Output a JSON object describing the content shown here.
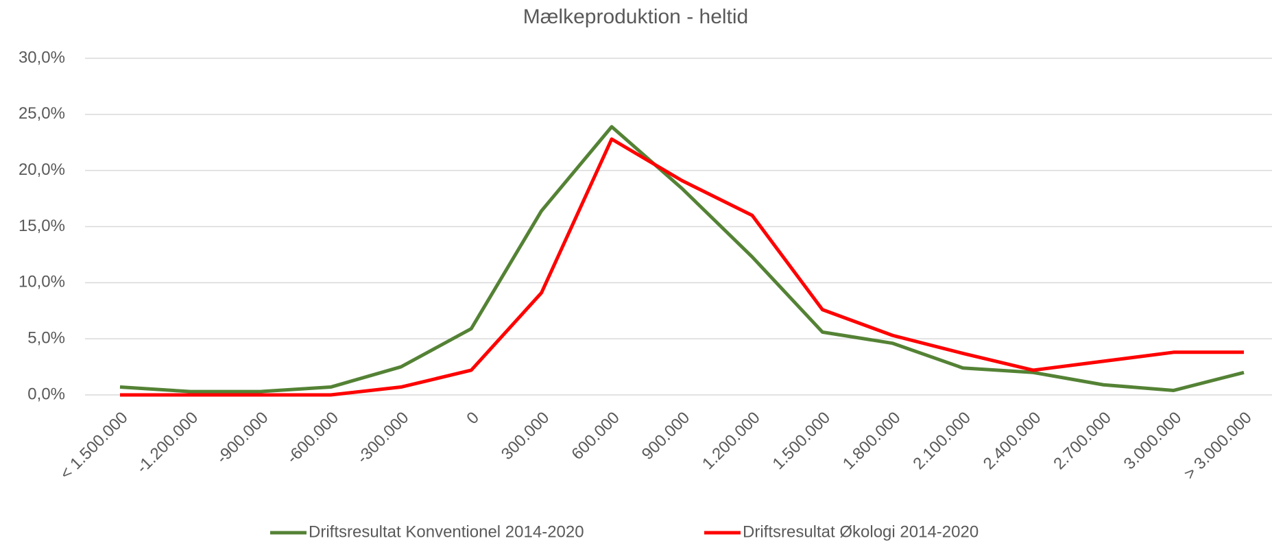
{
  "chart_data": {
    "type": "line",
    "title": "Mælkeproduktion - heltid",
    "categories": [
      "< 1.500.000",
      "-1.200.000",
      "-900.000",
      "-600.000",
      "-300.000",
      "0",
      "300.000",
      "600.000",
      "900.000",
      "1.200.000",
      "1.500.000",
      "1.800.000",
      "2.100.000",
      "2.400.000",
      "2.700.000",
      "3.000.000",
      "> 3.000.000"
    ],
    "series": [
      {
        "name": "Driftsresultat Konventionel 2014-2020",
        "color": "#548235",
        "values": [
          0.7,
          0.3,
          0.3,
          0.7,
          2.5,
          5.9,
          16.4,
          23.9,
          18.4,
          12.3,
          5.6,
          4.6,
          2.4,
          2.0,
          0.9,
          0.4,
          2.0
        ]
      },
      {
        "name": "Driftsresultat Økologi 2014-2020",
        "color": "#ff0000",
        "values": [
          0,
          0,
          0,
          0,
          0.7,
          2.2,
          9.1,
          22.8,
          19.1,
          16.0,
          7.6,
          5.3,
          3.7,
          2.2,
          3.0,
          3.8,
          3.8
        ]
      }
    ],
    "ylim": [
      0,
      30
    ],
    "yticks": [
      {
        "value": 0,
        "label": "0,0%"
      },
      {
        "value": 5,
        "label": "5,0%"
      },
      {
        "value": 10,
        "label": "10,0%"
      },
      {
        "value": 15,
        "label": "15,0%"
      },
      {
        "value": 20,
        "label": "20,0%"
      },
      {
        "value": 25,
        "label": "25,0%"
      },
      {
        "value": 30,
        "label": "30,0%"
      }
    ],
    "grid": true,
    "legend": "bottom"
  }
}
